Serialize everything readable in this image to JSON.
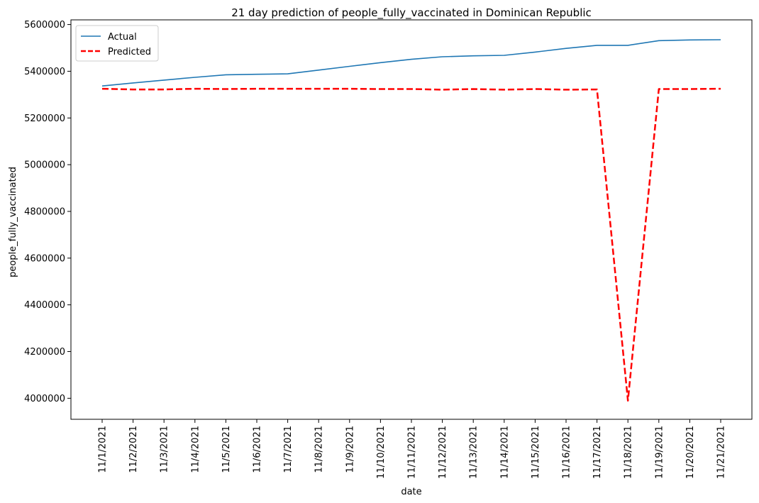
{
  "chart_data": {
    "type": "line",
    "title": "21 day prediction of people_fully_vaccinated in Dominican Republic",
    "xlabel": "date",
    "ylabel": "people_fully_vaccinated",
    "categories": [
      "11/1/2021",
      "11/2/2021",
      "11/3/2021",
      "11/4/2021",
      "11/5/2021",
      "11/6/2021",
      "11/7/2021",
      "11/8/2021",
      "11/9/2021",
      "11/10/2021",
      "11/11/2021",
      "11/12/2021",
      "11/13/2021",
      "11/14/2021",
      "11/15/2021",
      "11/16/2021",
      "11/17/2021",
      "11/18/2021",
      "11/19/2021",
      "11/20/2021",
      "11/21/2021"
    ],
    "yticks": [
      4000000,
      4200000,
      4400000,
      4600000,
      4800000,
      5000000,
      5200000,
      5400000,
      5600000
    ],
    "ylim": [
      3910000,
      5620000
    ],
    "grid": false,
    "legend_position": "upper-left",
    "series": [
      {
        "name": "Actual",
        "color": "#1f77b4",
        "style": "solid",
        "values": [
          5337000,
          5350000,
          5362000,
          5374000,
          5385000,
          5387000,
          5389000,
          5405000,
          5421000,
          5437000,
          5451000,
          5462000,
          5466000,
          5468000,
          5482000,
          5498000,
          5511000,
          5511000,
          5531000,
          5534000,
          5535000
        ]
      },
      {
        "name": "Predicted",
        "color": "#ff0000",
        "style": "dashed",
        "values": [
          5325000,
          5322000,
          5322000,
          5325000,
          5324000,
          5325000,
          5325000,
          5325000,
          5325000,
          5324000,
          5324000,
          5321000,
          5324000,
          5321000,
          5324000,
          5321000,
          5322000,
          3990000,
          5324000,
          5324000,
          5325000
        ]
      }
    ]
  }
}
